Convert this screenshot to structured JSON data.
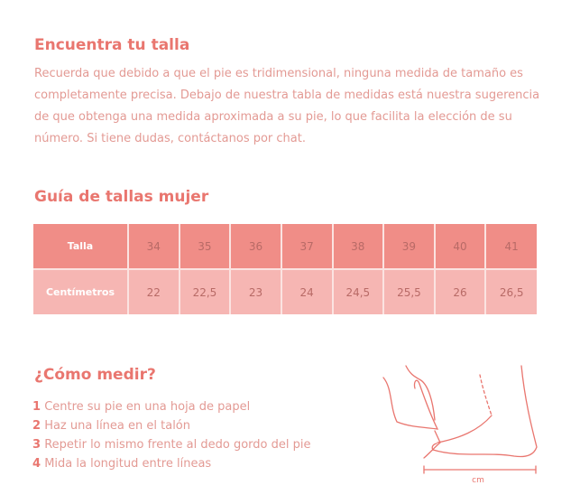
{
  "intro": {
    "title": "Encuentra tu talla",
    "text": "Recuerda que debido a que el pie es tridimensional, ninguna medida de tamaño es completamente precisa. Debajo de nuestra tabla de medidas está nuestra sugerencia de que obtenga una medida aproximada a su pie, lo que facilita la elección de su número. Si tiene dudas, contáctanos por chat."
  },
  "size_guide": {
    "title": "Guía de tallas mujer",
    "rows": [
      {
        "label": "Talla",
        "values": [
          "34",
          "35",
          "36",
          "37",
          "38",
          "39",
          "40",
          "41"
        ]
      },
      {
        "label": "Centímetros",
        "values": [
          "22",
          "22,5",
          "23",
          "24",
          "24,5",
          "25,5",
          "26",
          "26,5"
        ]
      }
    ]
  },
  "how_to": {
    "title": "¿Cómo medir?",
    "steps": [
      {
        "num": "1",
        "text": "Centre su pie en una hoja de papel"
      },
      {
        "num": "2",
        "text": "Haz una línea en el talón"
      },
      {
        "num": "3",
        "text": "Repetir lo mismo frente al dedo gordo del pie"
      },
      {
        "num": "4",
        "text": "Mida la longitud entre líneas"
      }
    ],
    "illustration_label": "cm"
  },
  "colors": {
    "accent": "#e9766f",
    "header_row": "#f08d87",
    "cm_row": "#f6b6b3",
    "body_text": "#e39a94"
  }
}
